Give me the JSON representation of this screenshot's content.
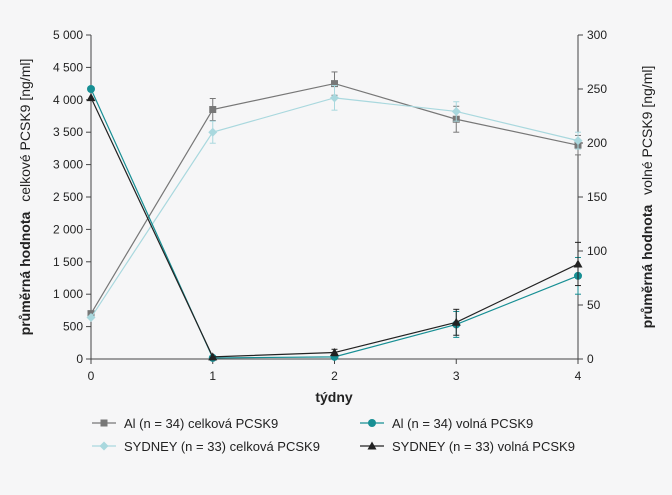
{
  "chart_data": {
    "type": "line",
    "x": [
      0,
      1,
      2,
      3,
      4
    ],
    "xlabel": "týdny",
    "ylabel_left": {
      "bold": "průměrná hodnota",
      "normal": "celkové PCSK9 [ng/ml]"
    },
    "ylabel_right": {
      "bold": "průměrná hodnota",
      "normal": "volné PCSK9 [ng/ml]"
    },
    "ylim_left": [
      0,
      5000
    ],
    "ylim_right": [
      0,
      300
    ],
    "yticks_left": [
      "0",
      "500",
      "1 000",
      "1 500",
      "2 000",
      "2 500",
      "3 000",
      "3 500",
      "4 000",
      "4 500",
      "5 000"
    ],
    "yticks_right": [
      "0",
      "50",
      "100",
      "150",
      "200",
      "250",
      "300"
    ],
    "xticks": [
      "0",
      "1",
      "2",
      "3",
      "4"
    ],
    "grid": false,
    "legend_position": "bottom",
    "series": [
      {
        "name": "Al (n = 34) celková PCSK9",
        "axis": "left",
        "color": "#777777",
        "marker": "square",
        "values": [
          700,
          3850,
          4250,
          3700,
          3300
        ],
        "err": [
          0,
          170,
          180,
          200,
          150
        ]
      },
      {
        "name": "SYDNEY (n = 33) celková PCSK9",
        "axis": "left",
        "color": "#a9d8de",
        "marker": "diamond",
        "values": [
          640,
          3500,
          4030,
          3820,
          3370
        ],
        "err": [
          0,
          170,
          190,
          150,
          130
        ]
      },
      {
        "name": "Al (n = 34) volná PCSK9",
        "axis": "right",
        "color": "#178f94",
        "marker": "circle",
        "values": [
          250,
          1,
          2,
          32,
          77
        ],
        "err": [
          0,
          0,
          0,
          12,
          17
        ]
      },
      {
        "name": "SYDNEY (n = 33) volná PCSK9",
        "axis": "right",
        "color": "#222222",
        "marker": "triangle",
        "values": [
          242,
          2,
          6,
          34,
          88
        ],
        "err": [
          0,
          0,
          3,
          12,
          20
        ]
      }
    ]
  }
}
